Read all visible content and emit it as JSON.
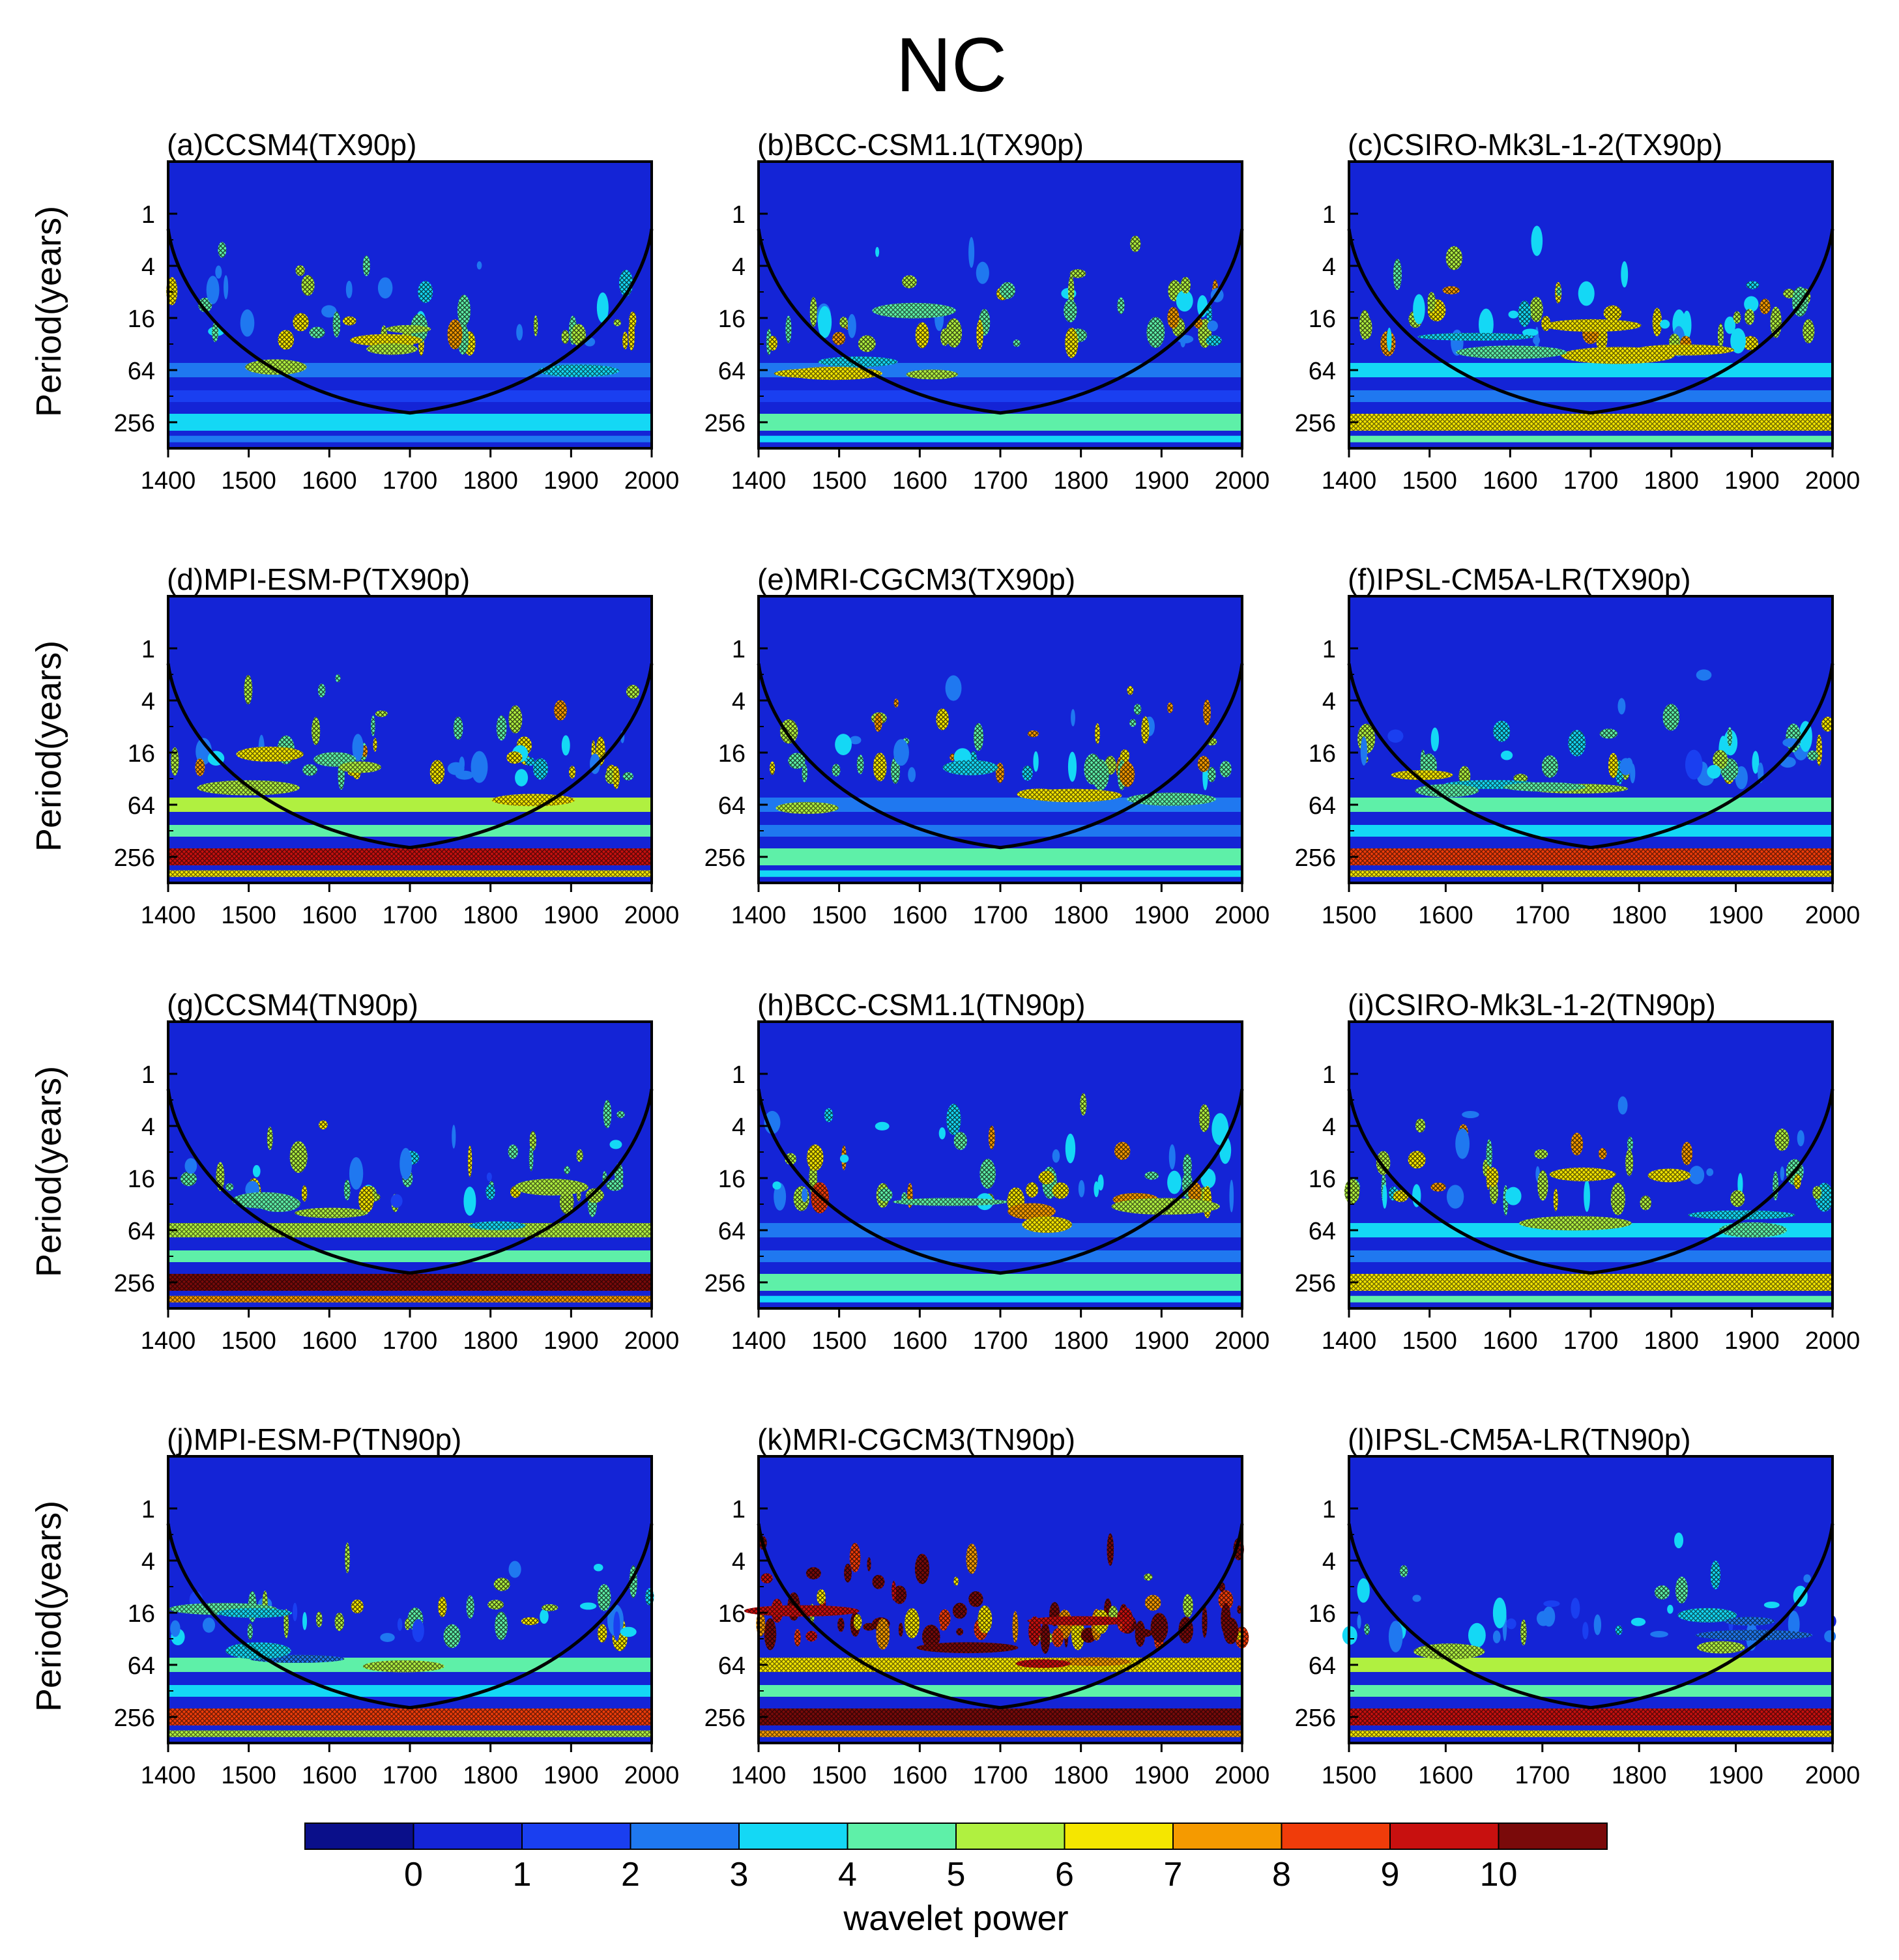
{
  "figure": {
    "title": "NC",
    "ylabel": "Period(years)",
    "colorbar_label": "wavelet power"
  },
  "colorbar": {
    "ticks": [
      "0",
      "1",
      "2",
      "3",
      "4",
      "5",
      "6",
      "7",
      "8",
      "9",
      "10"
    ],
    "colors": [
      "#0a0f8a",
      "#1424d6",
      "#1a3ff0",
      "#1f78f0",
      "#14d8f5",
      "#5ef0a8",
      "#b0f040",
      "#f5e600",
      "#f59a00",
      "#f03c0a",
      "#c8100f",
      "#7a0a0a"
    ]
  },
  "chart_data": [
    {
      "panel": "a",
      "title": "(a)CCSM4(TX90p)",
      "type": "heatmap",
      "xlim": [
        1400,
        2000
      ],
      "xticks": [
        "1400",
        "1500",
        "1600",
        "1700",
        "1800",
        "1900",
        "2000"
      ],
      "yticks": [
        "1",
        "4",
        "16",
        "64",
        "256"
      ],
      "coi_min_year": 1700,
      "coi_max_period": 200,
      "sig_level": 0.18,
      "low_freq_power": 0.35
    },
    {
      "panel": "b",
      "title": "(b)BCC-CSM1.1(TX90p)",
      "type": "heatmap",
      "xlim": [
        1400,
        2000
      ],
      "xticks": [
        "1400",
        "1500",
        "1600",
        "1700",
        "1800",
        "1900",
        "2000"
      ],
      "yticks": [
        "1",
        "4",
        "16",
        "64",
        "256"
      ],
      "coi_min_year": 1700,
      "coi_max_period": 200,
      "sig_level": 0.2,
      "low_freq_power": 0.4
    },
    {
      "panel": "c",
      "title": "(c)CSIRO-Mk3L-1-2(TX90p)",
      "type": "heatmap",
      "xlim": [
        1400,
        2000
      ],
      "xticks": [
        "1400",
        "1500",
        "1600",
        "1700",
        "1800",
        "1900",
        "2000"
      ],
      "yticks": [
        "1",
        "4",
        "16",
        "64",
        "256"
      ],
      "coi_min_year": 1700,
      "coi_max_period": 200,
      "sig_level": 0.22,
      "low_freq_power": 0.55
    },
    {
      "panel": "d",
      "title": "(d)MPI-ESM-P(TX90p)",
      "type": "heatmap",
      "xlim": [
        1400,
        2000
      ],
      "xticks": [
        "1400",
        "1500",
        "1600",
        "1700",
        "1800",
        "1900",
        "2000"
      ],
      "yticks": [
        "1",
        "4",
        "16",
        "64",
        "256"
      ],
      "coi_min_year": 1700,
      "coi_max_period": 200,
      "sig_level": 0.2,
      "low_freq_power": 0.85
    },
    {
      "panel": "e",
      "title": "(e)MRI-CGCM3(TX90p)",
      "type": "heatmap",
      "xlim": [
        1400,
        2000
      ],
      "xticks": [
        "1400",
        "1500",
        "1600",
        "1700",
        "1800",
        "1900",
        "2000"
      ],
      "yticks": [
        "1",
        "4",
        "16",
        "64",
        "256"
      ],
      "coi_min_year": 1700,
      "coi_max_period": 200,
      "sig_level": 0.2,
      "low_freq_power": 0.45
    },
    {
      "panel": "f",
      "title": "(f)IPSL-CM5A-LR(TX90p)",
      "type": "heatmap",
      "xlim": [
        1500,
        2000
      ],
      "xticks": [
        "1500",
        "1600",
        "1700",
        "1800",
        "1900",
        "2000"
      ],
      "yticks": [
        "1",
        "4",
        "16",
        "64",
        "256"
      ],
      "coi_min_year": 1750,
      "coi_max_period": 200,
      "sig_level": 0.15,
      "low_freq_power": 0.8
    },
    {
      "panel": "g",
      "title": "(g)CCSM4(TN90p)",
      "type": "heatmap",
      "xlim": [
        1400,
        2000
      ],
      "xticks": [
        "1400",
        "1500",
        "1600",
        "1700",
        "1800",
        "1900",
        "2000"
      ],
      "yticks": [
        "1",
        "4",
        "16",
        "64",
        "256"
      ],
      "coi_min_year": 1700,
      "coi_max_period": 200,
      "sig_level": 0.15,
      "low_freq_power": 0.95
    },
    {
      "panel": "h",
      "title": "(h)BCC-CSM1.1(TN90p)",
      "type": "heatmap",
      "xlim": [
        1400,
        2000
      ],
      "xticks": [
        "1400",
        "1500",
        "1600",
        "1700",
        "1800",
        "1900",
        "2000"
      ],
      "yticks": [
        "1",
        "4",
        "16",
        "64",
        "256"
      ],
      "coi_min_year": 1700,
      "coi_max_period": 200,
      "sig_level": 0.22,
      "low_freq_power": 0.45
    },
    {
      "panel": "i",
      "title": "(i)CSIRO-Mk3L-1-2(TN90p)",
      "type": "heatmap",
      "xlim": [
        1400,
        2000
      ],
      "xticks": [
        "1400",
        "1500",
        "1600",
        "1700",
        "1800",
        "1900",
        "2000"
      ],
      "yticks": [
        "1",
        "4",
        "16",
        "64",
        "256"
      ],
      "coi_min_year": 1700,
      "coi_max_period": 200,
      "sig_level": 0.2,
      "low_freq_power": 0.6
    },
    {
      "panel": "j",
      "title": "(j)MPI-ESM-P(TN90p)",
      "type": "heatmap",
      "xlim": [
        1400,
        2000
      ],
      "xticks": [
        "1400",
        "1500",
        "1600",
        "1700",
        "1800",
        "1900",
        "2000"
      ],
      "yticks": [
        "1",
        "4",
        "16",
        "64",
        "256"
      ],
      "coi_min_year": 1700,
      "coi_max_period": 200,
      "sig_level": 0.15,
      "low_freq_power": 0.75
    },
    {
      "panel": "k",
      "title": "(k)MRI-CGCM3(TN90p)",
      "type": "heatmap",
      "xlim": [
        1400,
        2000
      ],
      "xticks": [
        "1400",
        "1500",
        "1600",
        "1700",
        "1800",
        "1900",
        "2000"
      ],
      "yticks": [
        "1",
        "4",
        "16",
        "64",
        "256"
      ],
      "coi_min_year": 1700,
      "coi_max_period": 200,
      "sig_level": 0.5,
      "low_freq_power": 1.0
    },
    {
      "panel": "l",
      "title": "(l)IPSL-CM5A-LR(TN90p)",
      "type": "heatmap",
      "xlim": [
        1500,
        2000
      ],
      "xticks": [
        "1500",
        "1600",
        "1700",
        "1800",
        "1900",
        "2000"
      ],
      "yticks": [
        "1",
        "4",
        "16",
        "64",
        "256"
      ],
      "coi_min_year": 1750,
      "coi_max_period": 200,
      "sig_level": 0.08,
      "low_freq_power": 0.9
    }
  ]
}
